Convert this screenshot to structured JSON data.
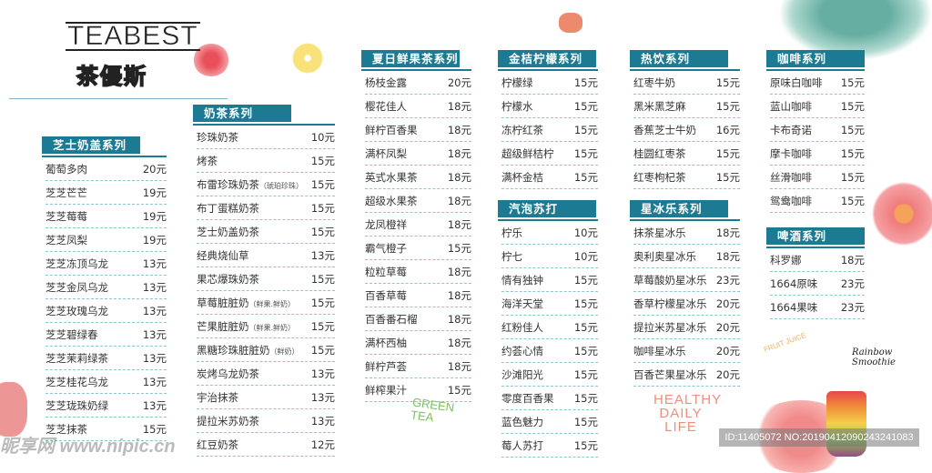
{
  "logo": {
    "en": "TEABEST",
    "cn": "茶優斯"
  },
  "sections": {
    "cheese": {
      "title": "芝士奶盖系列",
      "items": [
        {
          "name": "葡萄多肉",
          "price": "20元"
        },
        {
          "name": "芝芝芒芒",
          "price": "19元"
        },
        {
          "name": "芝芝莓莓",
          "price": "19元"
        },
        {
          "name": "芝芝凤梨",
          "price": "19元"
        },
        {
          "name": "芝芝冻顶乌龙",
          "price": "13元"
        },
        {
          "name": "芝芝金凤乌龙",
          "price": "13元"
        },
        {
          "name": "芝芝玫瑰乌龙",
          "price": "13元"
        },
        {
          "name": "芝芝碧绿春",
          "price": "13元"
        },
        {
          "name": "芝芝茉莉绿茶",
          "price": "13元"
        },
        {
          "name": "芝芝桂花乌龙",
          "price": "13元"
        },
        {
          "name": "芝芝珑珠奶绿",
          "price": "13元"
        },
        {
          "name": "芝芝抹茶",
          "price": "15元"
        }
      ]
    },
    "milktea": {
      "title": "奶茶系列",
      "items": [
        {
          "name": "珍珠奶茶",
          "price": "10元"
        },
        {
          "name": "烤茶",
          "price": "15元"
        },
        {
          "name": "布雷珍珠奶茶",
          "note": "（琥珀珍珠）",
          "price": "15元"
        },
        {
          "name": "布丁蛋糕奶茶",
          "price": "15元"
        },
        {
          "name": "芝士奶盖奶茶",
          "price": "15元"
        },
        {
          "name": "经典烧仙草",
          "price": "13元"
        },
        {
          "name": "果芯爆珠奶茶",
          "price": "15元"
        },
        {
          "name": "草莓脏脏奶",
          "note": "（鲜果.鲜奶）",
          "price": "15元"
        },
        {
          "name": "芒果脏脏奶",
          "note": "（鲜果.鲜奶）",
          "price": "15元"
        },
        {
          "name": "黑糖珍珠脏脏奶",
          "note": "（鲜奶）",
          "price": "15元"
        },
        {
          "name": "炭烤乌龙奶茶",
          "price": "13元"
        },
        {
          "name": "宇治抹茶",
          "price": "13元"
        },
        {
          "name": "提拉米苏奶茶",
          "price": "13元"
        },
        {
          "name": "红豆奶茶",
          "price": "12元"
        }
      ]
    },
    "fruit": {
      "title": "夏日鲜果茶系列",
      "items": [
        {
          "name": "杨枝金露",
          "price": "20元"
        },
        {
          "name": "樱花佳人",
          "price": "18元"
        },
        {
          "name": "鲜柠百香果",
          "price": "18元"
        },
        {
          "name": "满杯凤梨",
          "price": "18元"
        },
        {
          "name": "英式水果茶",
          "price": "18元"
        },
        {
          "name": "超级水果茶",
          "price": "18元"
        },
        {
          "name": "龙凤橙祥",
          "price": "18元"
        },
        {
          "name": "霸气橙子",
          "price": "15元"
        },
        {
          "name": "粒粒草莓",
          "price": "18元"
        },
        {
          "name": "百香草莓",
          "price": "18元"
        },
        {
          "name": "百香番石榴",
          "price": "18元"
        },
        {
          "name": "满杯西柚",
          "price": "18元"
        },
        {
          "name": "鲜柠芦荟",
          "price": "18元"
        },
        {
          "name": "鲜榨果汁",
          "price": "15元"
        }
      ]
    },
    "kumquat": {
      "title": "金桔柠檬系列",
      "items": [
        {
          "name": "柠檬绿",
          "price": "15元"
        },
        {
          "name": "柠檬水",
          "price": "15元"
        },
        {
          "name": "冻柠红茶",
          "price": "15元"
        },
        {
          "name": "超级鲜桔柠",
          "price": "15元"
        },
        {
          "name": "满杯金桔",
          "price": "15元"
        }
      ]
    },
    "soda": {
      "title": "汽泡苏打",
      "items": [
        {
          "name": "柠乐",
          "price": "10元"
        },
        {
          "name": "柠七",
          "price": "10元"
        },
        {
          "name": "情有独钟",
          "price": "15元"
        },
        {
          "name": "海洋天堂",
          "price": "15元"
        },
        {
          "name": "红粉佳人",
          "price": "15元"
        },
        {
          "name": "约荟心情",
          "price": "15元"
        },
        {
          "name": "沙滩阳光",
          "price": "15元"
        },
        {
          "name": "零度百香果",
          "price": "15元"
        },
        {
          "name": "蓝色魅力",
          "price": "15元"
        },
        {
          "name": "莓人苏打",
          "price": "15元"
        }
      ]
    },
    "hot": {
      "title": "热饮系列",
      "items": [
        {
          "name": "红枣牛奶",
          "price": "15元"
        },
        {
          "name": "黑米黑芝麻",
          "price": "15元"
        },
        {
          "name": "香蕉芝士牛奶",
          "price": "16元"
        },
        {
          "name": "桂圆红枣茶",
          "price": "15元"
        },
        {
          "name": "红枣枸杞茶",
          "price": "15元"
        }
      ]
    },
    "frappe": {
      "title": "星冰乐系列",
      "items": [
        {
          "name": "抹茶星冰乐",
          "price": "18元"
        },
        {
          "name": "奥利奥星冰乐",
          "price": "18元"
        },
        {
          "name": "草莓酸奶星冰乐",
          "price": "23元"
        },
        {
          "name": "香草柠檬星冰乐",
          "price": "20元"
        },
        {
          "name": "提拉米苏星冰乐",
          "price": "20元"
        },
        {
          "name": "咖啡星冰乐",
          "price": "20元"
        },
        {
          "name": "百香芒果星冰乐",
          "price": "20元"
        }
      ]
    },
    "coffee": {
      "title": "咖啡系列",
      "items": [
        {
          "name": "原味白咖啡",
          "price": "15元"
        },
        {
          "name": "蓝山咖啡",
          "price": "15元"
        },
        {
          "name": "卡布奇诺",
          "price": "15元"
        },
        {
          "name": "摩卡咖啡",
          "price": "15元"
        },
        {
          "name": "丝滑咖啡",
          "price": "15元"
        },
        {
          "name": "鸳鸯咖啡",
          "price": "15元"
        }
      ]
    },
    "beer": {
      "title": "啤酒系列",
      "items": [
        {
          "name": "科罗娜",
          "price": "18元"
        },
        {
          "name": "1664原味",
          "price": "23元"
        },
        {
          "name": "1664果味",
          "price": "23元"
        }
      ]
    }
  },
  "decor": {
    "green_tea": "GREEN TEA",
    "healthy": "HEALTHY DAILY LIFE",
    "fruit_juice": "FRUIT JUICE",
    "rainbow": "Rainbow Smoothie",
    "watermark_site": "昵享网 www.nipic.cn",
    "watermark_id": "ID:11405072 NO:20190412090243241083"
  },
  "colors": {
    "accent": "#1c7a93",
    "divider": "#8fc4d1"
  }
}
